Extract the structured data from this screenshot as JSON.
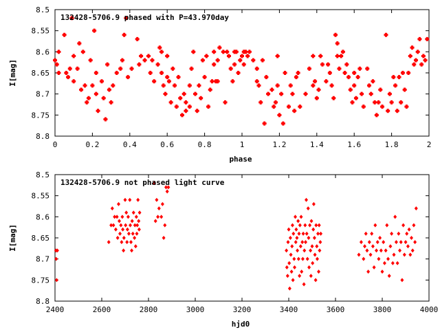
{
  "chart_data": [
    {
      "type": "scatter",
      "title": "132428-5706.9 phased with P=43.970day",
      "xlabel": "phase",
      "ylabel": "I[mag]",
      "xlim": [
        0,
        2
      ],
      "ylim": [
        8.5,
        8.8
      ],
      "y_inverted": true,
      "xticks": [
        "0",
        "0.2",
        "0.4",
        "0.6",
        "0.8",
        "1",
        "1.2",
        "1.4",
        "1.6",
        "1.8",
        "2"
      ],
      "yticks": [
        "8.5",
        "8.55",
        "8.6",
        "8.65",
        "8.7",
        "8.75",
        "8.8"
      ],
      "marker": "square-cross",
      "color": "#ff0000",
      "points": [
        [
          0.0,
          8.62
        ],
        [
          0.01,
          8.63
        ],
        [
          0.02,
          8.6
        ],
        [
          0.02,
          8.65
        ],
        [
          0.05,
          8.56
        ],
        [
          0.06,
          8.65
        ],
        [
          0.07,
          8.66
        ],
        [
          0.08,
          8.64
        ],
        [
          0.09,
          8.52
        ],
        [
          0.1,
          8.61
        ],
        [
          0.1,
          8.67
        ],
        [
          0.12,
          8.64
        ],
        [
          0.13,
          8.58
        ],
        [
          0.14,
          8.69
        ],
        [
          0.15,
          8.6
        ],
        [
          0.16,
          8.68
        ],
        [
          0.17,
          8.72
        ],
        [
          0.18,
          8.71
        ],
        [
          0.19,
          8.62
        ],
        [
          0.2,
          8.68
        ],
        [
          0.21,
          8.55
        ],
        [
          0.22,
          8.65
        ],
        [
          0.22,
          8.7
        ],
        [
          0.23,
          8.74
        ],
        [
          0.25,
          8.67
        ],
        [
          0.26,
          8.71
        ],
        [
          0.27,
          8.76
        ],
        [
          0.28,
          8.63
        ],
        [
          0.29,
          8.69
        ],
        [
          0.3,
          8.72
        ],
        [
          0.31,
          8.68
        ],
        [
          0.33,
          8.65
        ],
        [
          0.35,
          8.64
        ],
        [
          0.36,
          8.62
        ],
        [
          0.37,
          8.56
        ],
        [
          0.38,
          8.52
        ],
        [
          0.39,
          8.66
        ],
        [
          0.41,
          8.64
        ],
        [
          0.44,
          8.57
        ],
        [
          0.45,
          8.63
        ],
        [
          0.46,
          8.61
        ],
        [
          0.48,
          8.62
        ],
        [
          0.5,
          8.61
        ],
        [
          0.51,
          8.65
        ],
        [
          0.52,
          8.62
        ],
        [
          0.53,
          8.67
        ],
        [
          0.55,
          8.63
        ],
        [
          0.56,
          8.59
        ],
        [
          0.57,
          8.6
        ],
        [
          0.57,
          8.65
        ],
        [
          0.58,
          8.68
        ],
        [
          0.59,
          8.7
        ],
        [
          0.6,
          8.66
        ],
        [
          0.6,
          8.61
        ],
        [
          0.61,
          8.67
        ],
        [
          0.62,
          8.72
        ],
        [
          0.63,
          8.64
        ],
        [
          0.64,
          8.68
        ],
        [
          0.65,
          8.73
        ],
        [
          0.66,
          8.66
        ],
        [
          0.67,
          8.71
        ],
        [
          0.68,
          8.75
        ],
        [
          0.69,
          8.7
        ],
        [
          0.7,
          8.72
        ],
        [
          0.7,
          8.74
        ],
        [
          0.72,
          8.68
        ],
        [
          0.72,
          8.73
        ],
        [
          0.73,
          8.64
        ],
        [
          0.74,
          8.6
        ],
        [
          0.75,
          8.7
        ],
        [
          0.76,
          8.74
        ],
        [
          0.77,
          8.68
        ],
        [
          0.78,
          8.71
        ],
        [
          0.79,
          8.62
        ],
        [
          0.8,
          8.66
        ],
        [
          0.81,
          8.61
        ],
        [
          0.82,
          8.73
        ],
        [
          0.83,
          8.69
        ],
        [
          0.84,
          8.67
        ],
        [
          0.85,
          8.63
        ],
        [
          0.85,
          8.6
        ],
        [
          0.86,
          8.67
        ],
        [
          0.87,
          8.62
        ],
        [
          0.87,
          8.67
        ],
        [
          0.88,
          8.59
        ],
        [
          0.9,
          8.6
        ],
        [
          0.91,
          8.72
        ],
        [
          0.92,
          8.6
        ],
        [
          0.93,
          8.61
        ],
        [
          0.94,
          8.64
        ],
        [
          0.95,
          8.67
        ],
        [
          0.96,
          8.63
        ],
        [
          0.96,
          8.6
        ],
        [
          0.97,
          8.6
        ],
        [
          0.98,
          8.65
        ],
        [
          0.99,
          8.62
        ],
        [
          1.0,
          8.61
        ],
        [
          1.01,
          8.63
        ],
        [
          1.01,
          8.6
        ],
        [
          1.02,
          8.6
        ],
        [
          1.03,
          8.61
        ],
        [
          1.04,
          8.6
        ],
        [
          1.06,
          8.62
        ],
        [
          1.08,
          8.64
        ],
        [
          1.08,
          8.67
        ],
        [
          1.09,
          8.68
        ],
        [
          1.1,
          8.72
        ],
        [
          1.11,
          8.62
        ],
        [
          1.12,
          8.77
        ],
        [
          1.13,
          8.66
        ],
        [
          1.14,
          8.7
        ],
        [
          1.16,
          8.69
        ],
        [
          1.17,
          8.73
        ],
        [
          1.18,
          8.72
        ],
        [
          1.19,
          8.61
        ],
        [
          1.19,
          8.68
        ],
        [
          1.2,
          8.75
        ],
        [
          1.21,
          8.7
        ],
        [
          1.22,
          8.77
        ],
        [
          1.23,
          8.65
        ],
        [
          1.25,
          8.73
        ],
        [
          1.26,
          8.68
        ],
        [
          1.27,
          8.7
        ],
        [
          1.28,
          8.74
        ],
        [
          1.29,
          8.66
        ],
        [
          1.3,
          8.65
        ],
        [
          1.31,
          8.73
        ],
        [
          1.34,
          8.7
        ],
        [
          1.36,
          8.64
        ],
        [
          1.38,
          8.61
        ],
        [
          1.38,
          8.68
        ],
        [
          1.39,
          8.67
        ],
        [
          1.4,
          8.71
        ],
        [
          1.41,
          8.69
        ],
        [
          1.42,
          8.61
        ],
        [
          1.43,
          8.63
        ],
        [
          1.45,
          8.67
        ],
        [
          1.46,
          8.63
        ],
        [
          1.47,
          8.65
        ],
        [
          1.48,
          8.68
        ],
        [
          1.49,
          8.71
        ],
        [
          1.5,
          8.56
        ],
        [
          1.51,
          8.58
        ],
        [
          1.51,
          8.61
        ],
        [
          1.52,
          8.64
        ],
        [
          1.53,
          8.61
        ],
        [
          1.54,
          8.6
        ],
        [
          1.55,
          8.65
        ],
        [
          1.56,
          8.63
        ],
        [
          1.57,
          8.66
        ],
        [
          1.58,
          8.69
        ],
        [
          1.59,
          8.72
        ],
        [
          1.6,
          8.68
        ],
        [
          1.6,
          8.65
        ],
        [
          1.61,
          8.71
        ],
        [
          1.62,
          8.66
        ],
        [
          1.63,
          8.64
        ],
        [
          1.64,
          8.7
        ],
        [
          1.65,
          8.73
        ],
        [
          1.67,
          8.64
        ],
        [
          1.68,
          8.68
        ],
        [
          1.69,
          8.7
        ],
        [
          1.7,
          8.67
        ],
        [
          1.71,
          8.72
        ],
        [
          1.72,
          8.75
        ],
        [
          1.73,
          8.72
        ],
        [
          1.74,
          8.69
        ],
        [
          1.75,
          8.73
        ],
        [
          1.77,
          8.56
        ],
        [
          1.78,
          8.74
        ],
        [
          1.79,
          8.7
        ],
        [
          1.8,
          8.72
        ],
        [
          1.81,
          8.66
        ],
        [
          1.82,
          8.68
        ],
        [
          1.83,
          8.74
        ],
        [
          1.84,
          8.66
        ],
        [
          1.85,
          8.72
        ],
        [
          1.86,
          8.65
        ],
        [
          1.87,
          8.69
        ],
        [
          1.88,
          8.73
        ],
        [
          1.89,
          8.65
        ],
        [
          1.9,
          8.61
        ],
        [
          1.91,
          8.59
        ],
        [
          1.92,
          8.63
        ],
        [
          1.93,
          8.62
        ],
        [
          1.94,
          8.6
        ],
        [
          1.95,
          8.57
        ],
        [
          1.96,
          8.63
        ],
        [
          1.97,
          8.61
        ],
        [
          1.98,
          8.62
        ],
        [
          1.99,
          8.57
        ]
      ]
    },
    {
      "type": "scatter",
      "title": "132428-5706.9 not phased light curve",
      "xlabel": "hjd0",
      "ylabel": "I[mag]",
      "xlim": [
        2400,
        4000
      ],
      "ylim": [
        8.5,
        8.8
      ],
      "y_inverted": true,
      "xticks": [
        "2400",
        "2600",
        "2800",
        "3000",
        "3200",
        "3400",
        "3600",
        "3800",
        "4000"
      ],
      "yticks": [
        "8.5",
        "8.55",
        "8.6",
        "8.65",
        "8.7",
        "8.75",
        "8.8"
      ],
      "marker": "diamond",
      "color": "#ff0000",
      "points": [
        [
          2404,
          8.68
        ],
        [
          2405,
          8.7
        ],
        [
          2407,
          8.75
        ],
        [
          2410,
          8.68
        ],
        [
          2630,
          8.66
        ],
        [
          2640,
          8.62
        ],
        [
          2645,
          8.58
        ],
        [
          2650,
          8.62
        ],
        [
          2655,
          8.6
        ],
        [
          2660,
          8.63
        ],
        [
          2665,
          8.6
        ],
        [
          2668,
          8.65
        ],
        [
          2672,
          8.57
        ],
        [
          2675,
          8.61
        ],
        [
          2678,
          8.64
        ],
        [
          2682,
          8.62
        ],
        [
          2685,
          8.66
        ],
        [
          2688,
          8.6
        ],
        [
          2690,
          8.63
        ],
        [
          2693,
          8.68
        ],
        [
          2695,
          8.65
        ],
        [
          2700,
          8.56
        ],
        [
          2702,
          8.62
        ],
        [
          2705,
          8.59
        ],
        [
          2708,
          8.66
        ],
        [
          2710,
          8.63
        ],
        [
          2713,
          8.6
        ],
        [
          2716,
          8.64
        ],
        [
          2720,
          8.56
        ],
        [
          2722,
          8.62
        ],
        [
          2725,
          8.66
        ],
        [
          2728,
          8.68
        ],
        [
          2730,
          8.61
        ],
        [
          2733,
          8.64
        ],
        [
          2736,
          8.59
        ],
        [
          2740,
          8.65
        ],
        [
          2742,
          8.62
        ],
        [
          2745,
          8.67
        ],
        [
          2748,
          8.6
        ],
        [
          2750,
          8.64
        ],
        [
          2752,
          8.62
        ],
        [
          2755,
          8.56
        ],
        [
          2758,
          8.61
        ],
        [
          2760,
          8.63
        ],
        [
          2762,
          8.59
        ],
        [
          2825,
          8.52
        ],
        [
          2830,
          8.61
        ],
        [
          2835,
          8.56
        ],
        [
          2840,
          8.6
        ],
        [
          2845,
          8.58
        ],
        [
          2855,
          8.6
        ],
        [
          2860,
          8.57
        ],
        [
          2865,
          8.65
        ],
        [
          2870,
          8.62
        ],
        [
          2875,
          8.53
        ],
        [
          2880,
          8.54
        ],
        [
          2885,
          8.53
        ],
        [
          3390,
          8.68
        ],
        [
          3392,
          8.72
        ],
        [
          3395,
          8.74
        ],
        [
          3397,
          8.66
        ],
        [
          3400,
          8.63
        ],
        [
          3402,
          8.71
        ],
        [
          3404,
          8.77
        ],
        [
          3407,
          8.65
        ],
        [
          3409,
          8.69
        ],
        [
          3412,
          8.73
        ],
        [
          3414,
          8.67
        ],
        [
          3416,
          8.62
        ],
        [
          3418,
          8.75
        ],
        [
          3420,
          8.64
        ],
        [
          3423,
          8.7
        ],
        [
          3425,
          8.72
        ],
        [
          3428,
          8.6
        ],
        [
          3430,
          8.66
        ],
        [
          3432,
          8.63
        ],
        [
          3435,
          8.65
        ],
        [
          3437,
          8.68
        ],
        [
          3440,
          8.61
        ],
        [
          3442,
          8.7
        ],
        [
          3444,
          8.64
        ],
        [
          3446,
          8.74
        ],
        [
          3448,
          8.62
        ],
        [
          3451,
          8.67
        ],
        [
          3453,
          8.6
        ],
        [
          3455,
          8.73
        ],
        [
          3458,
          8.66
        ],
        [
          3460,
          8.7
        ],
        [
          3462,
          8.64
        ],
        [
          3465,
          8.76
        ],
        [
          3467,
          8.68
        ],
        [
          3470,
          8.62
        ],
        [
          3472,
          8.66
        ],
        [
          3475,
          8.56
        ],
        [
          3477,
          8.64
        ],
        [
          3480,
          8.7
        ],
        [
          3483,
          8.58
        ],
        [
          3485,
          8.65
        ],
        [
          3487,
          8.72
        ],
        [
          3490,
          8.62
        ],
        [
          3493,
          8.68
        ],
        [
          3495,
          8.74
        ],
        [
          3497,
          8.61
        ],
        [
          3500,
          8.67
        ],
        [
          3502,
          8.71
        ],
        [
          3505,
          8.63
        ],
        [
          3507,
          8.57
        ],
        [
          3510,
          8.65
        ],
        [
          3512,
          8.69
        ],
        [
          3515,
          8.75
        ],
        [
          3517,
          8.62
        ],
        [
          3520,
          8.67
        ],
        [
          3522,
          8.7
        ],
        [
          3525,
          8.64
        ],
        [
          3528,
          8.73
        ],
        [
          3530,
          8.62
        ],
        [
          3532,
          8.68
        ],
        [
          3535,
          8.66
        ],
        [
          3537,
          8.64
        ],
        [
          3700,
          8.69
        ],
        [
          3710,
          8.66
        ],
        [
          3720,
          8.7
        ],
        [
          3725,
          8.67
        ],
        [
          3730,
          8.64
        ],
        [
          3735,
          8.68
        ],
        [
          3740,
          8.73
        ],
        [
          3745,
          8.66
        ],
        [
          3750,
          8.69
        ],
        [
          3755,
          8.64
        ],
        [
          3760,
          8.67
        ],
        [
          3765,
          8.72
        ],
        [
          3770,
          8.62
        ],
        [
          3775,
          8.68
        ],
        [
          3780,
          8.66
        ],
        [
          3785,
          8.7
        ],
        [
          3790,
          8.65
        ],
        [
          3795,
          8.68
        ],
        [
          3800,
          8.73
        ],
        [
          3805,
          8.66
        ],
        [
          3810,
          8.71
        ],
        [
          3815,
          8.68
        ],
        [
          3820,
          8.62
        ],
        [
          3825,
          8.7
        ],
        [
          3830,
          8.74
        ],
        [
          3835,
          8.67
        ],
        [
          3840,
          8.64
        ],
        [
          3845,
          8.71
        ],
        [
          3850,
          8.69
        ],
        [
          3855,
          8.6
        ],
        [
          3860,
          8.66
        ],
        [
          3865,
          8.71
        ],
        [
          3870,
          8.64
        ],
        [
          3875,
          8.68
        ],
        [
          3880,
          8.66
        ],
        [
          3885,
          8.75
        ],
        [
          3890,
          8.62
        ],
        [
          3895,
          8.69
        ],
        [
          3900,
          8.66
        ],
        [
          3905,
          8.64
        ],
        [
          3910,
          8.67
        ],
        [
          3915,
          8.63
        ],
        [
          3920,
          8.69
        ],
        [
          3925,
          8.65
        ],
        [
          3930,
          8.68
        ],
        [
          3935,
          8.62
        ],
        [
          3940,
          8.66
        ],
        [
          3945,
          8.58
        ]
      ]
    }
  ]
}
